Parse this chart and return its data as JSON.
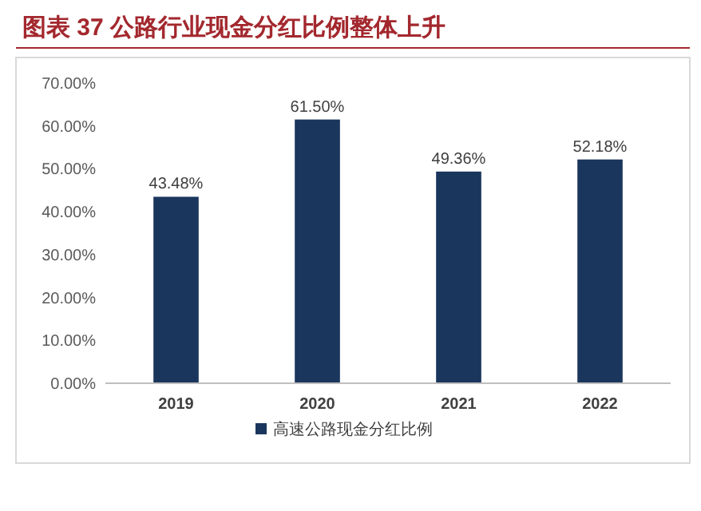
{
  "chart_data": {
    "type": "bar",
    "title": "图表 37   公路行业现金分红比例整体上升",
    "categories": [
      "2019",
      "2020",
      "2021",
      "2022"
    ],
    "series": [
      {
        "name": "高速公路现金分红比例",
        "color": "#1b365d",
        "values": [
          43.48,
          61.5,
          49.36,
          52.18
        ],
        "value_labels": [
          "43.48%",
          "61.50%",
          "49.36%",
          "52.18%"
        ]
      }
    ],
    "ylim": [
      0,
      70
    ],
    "yticks": [
      {
        "value": 0,
        "label": "0.00%"
      },
      {
        "value": 10,
        "label": "10.00%"
      },
      {
        "value": 20,
        "label": "20.00%"
      },
      {
        "value": 30,
        "label": "30.00%"
      },
      {
        "value": 40,
        "label": "40.00%"
      },
      {
        "value": 50,
        "label": "50.00%"
      },
      {
        "value": 60,
        "label": "60.00%"
      },
      {
        "value": 70,
        "label": "70.00%"
      }
    ],
    "legend": "bottom"
  }
}
